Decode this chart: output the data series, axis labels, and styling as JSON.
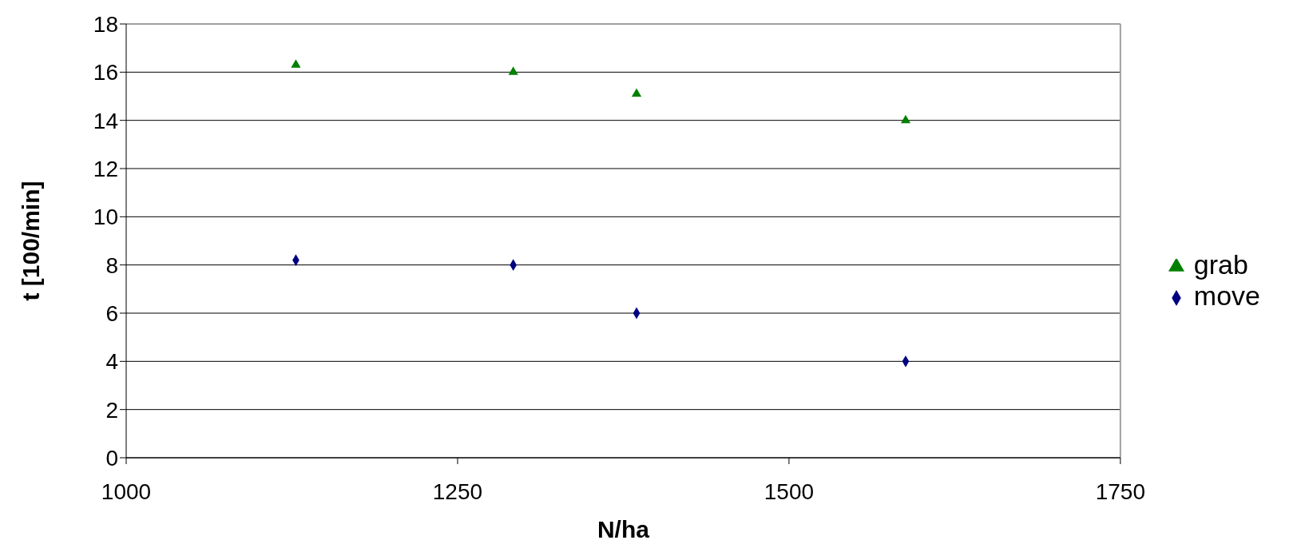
{
  "chart_data": {
    "type": "scatter",
    "xlabel": "N/ha",
    "ylabel": "t [100/min]",
    "xlim": [
      1000,
      1750
    ],
    "xticks": [
      1000,
      1250,
      1500,
      1750
    ],
    "ylim": [
      0,
      18
    ],
    "yticks": [
      0,
      2,
      4,
      6,
      8,
      10,
      12,
      14,
      16,
      18
    ],
    "grid": "y",
    "legend": "right",
    "series": [
      {
        "name": "grab",
        "color": "#008000",
        "marker": "triangle",
        "x": [
          1128,
          1292,
          1385,
          1588
        ],
        "values": [
          16.3,
          16.0,
          15.1,
          14.0
        ]
      },
      {
        "name": "move",
        "color": "#000080",
        "marker": "diamond",
        "x": [
          1128,
          1292,
          1385,
          1588
        ],
        "values": [
          8.2,
          8.0,
          6.0,
          4.0
        ]
      }
    ]
  }
}
